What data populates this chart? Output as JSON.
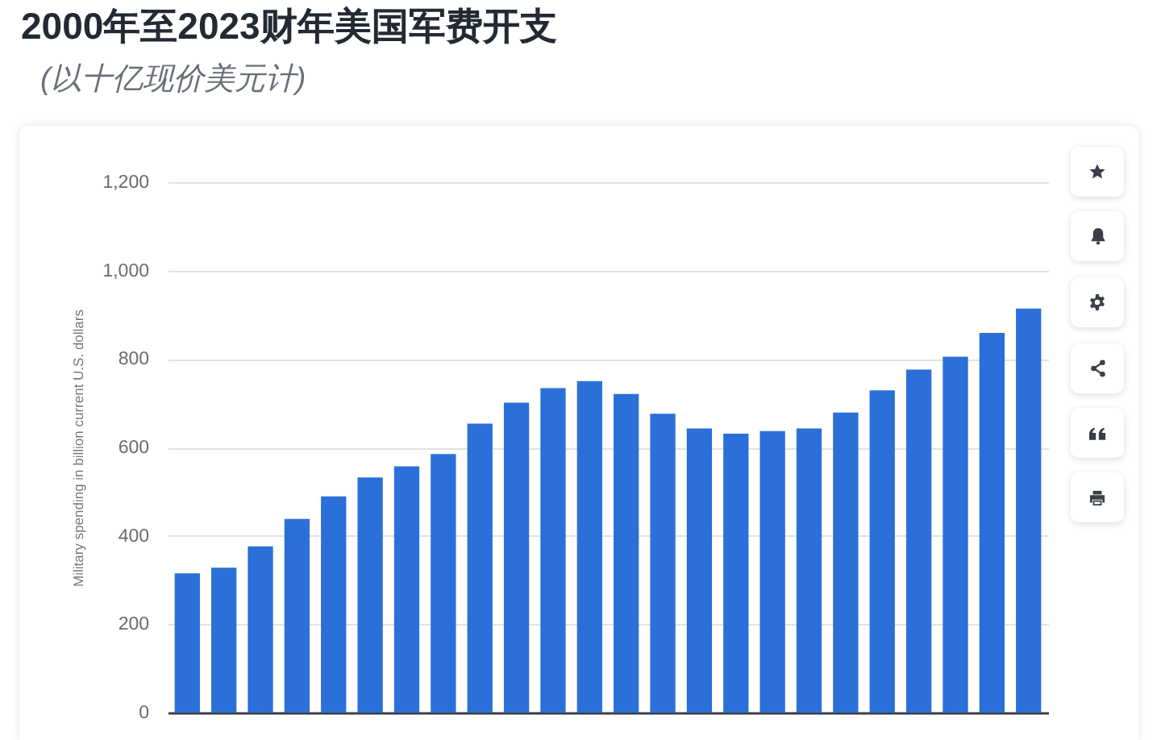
{
  "chart_data": {
    "type": "bar",
    "title": "2000年至2023财年美国军费开支",
    "subtitle": "(以十亿现价美元计)",
    "ylabel": "Military spending in billion current U.S. dollars",
    "categories": [
      null,
      null,
      null,
      null,
      null,
      null,
      null,
      null,
      null,
      null,
      null,
      null,
      null,
      null,
      null,
      null,
      null,
      null,
      null,
      null,
      null,
      null,
      null,
      null
    ],
    "values": [
      315,
      328,
      376,
      438,
      489,
      532,
      557,
      585,
      654,
      701,
      734,
      750,
      721,
      676,
      643,
      631,
      637,
      643,
      679,
      729,
      776,
      805,
      859,
      914
    ],
    "color": "#2b70d8",
    "ylim": [
      0,
      1200
    ],
    "yticks": [
      0,
      200,
      400,
      600,
      800,
      {
        "value": 1000,
        "label": "1,000"
      },
      {
        "value": 1200,
        "label": "1,200"
      }
    ],
    "grid": "y",
    "tick_labels": "y"
  }
}
